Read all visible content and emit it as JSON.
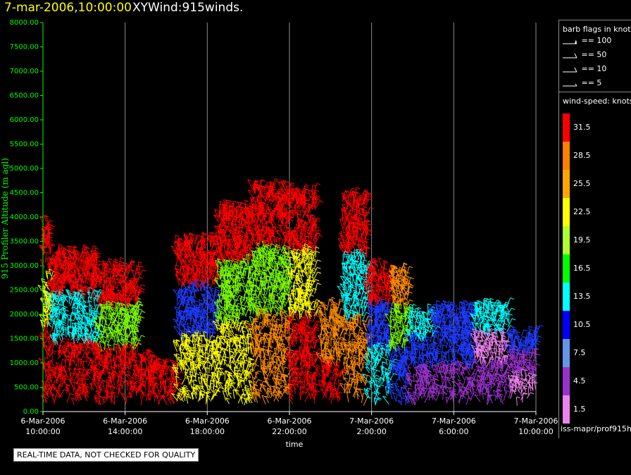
{
  "header": {
    "date": "7-mar-2006,10:00:00",
    "title": "XYWind:915winds."
  },
  "chart_data": {
    "type": "scatter",
    "title": "XYWind:915winds.",
    "xlabel": "time",
    "ylabel": "915 Profiler Altitude (m agl)",
    "ylim": [
      0,
      8000
    ],
    "yticks": [
      "0.00",
      "500.00",
      "1000.00",
      "1500.00",
      "2000.00",
      "2500.00",
      "3000.00",
      "3500.00",
      "4000.00",
      "4500.00",
      "5000.00",
      "5500.00",
      "6000.00",
      "6500.00",
      "7000.00",
      "7500.00",
      "8000.00"
    ],
    "xticks": [
      {
        "date": "6-Mar-2006",
        "time": "10:00:00"
      },
      {
        "date": "6-Mar-2006",
        "time": "14:00:00"
      },
      {
        "date": "6-Mar-2006",
        "time": "18:00:00"
      },
      {
        "date": "6-Mar-2006",
        "time": "22:00:00"
      },
      {
        "date": "7-Mar-2006",
        "time": "2:00:00"
      },
      {
        "date": "7-Mar-2006",
        "time": "6:00:00"
      },
      {
        "date": "7-Mar-2006",
        "time": "10:00:00"
      }
    ],
    "xlim_hours": [
      0,
      24
    ],
    "grid": "vertical",
    "note": "Wind barbs colored by speed; approximate column structure: [start hour, end hour, top altitude m, colour zones]",
    "columns": [
      {
        "t0": 0.0,
        "t1": 0.4,
        "top": 3900,
        "low": "red",
        "mid": "yellow",
        "hi": "red"
      },
      {
        "t0": 0.4,
        "t1": 2.7,
        "top": 3250,
        "low": "red",
        "mid": "cyan",
        "hi": "red"
      },
      {
        "t0": 2.7,
        "t1": 4.7,
        "top": 2950,
        "low": "red",
        "mid": "green",
        "hi": "red"
      },
      {
        "t0": 4.7,
        "t1": 5.3,
        "top": 1100,
        "low": "red",
        "mid": "red",
        "hi": "red"
      },
      {
        "t0": 5.3,
        "t1": 6.5,
        "top": 900,
        "low": "red",
        "mid": "red",
        "hi": "red"
      },
      {
        "t0": 6.5,
        "t1": 8.5,
        "top": 3500,
        "low": "yellow",
        "mid": "blue",
        "hi": "red"
      },
      {
        "t0": 8.5,
        "t1": 10.2,
        "top": 4200,
        "low": "yellow",
        "mid": "green",
        "hi": "red"
      },
      {
        "t0": 10.2,
        "t1": 12.0,
        "top": 4600,
        "low": "orange",
        "mid": "green",
        "hi": "red"
      },
      {
        "t0": 12.0,
        "t1": 13.3,
        "top": 4500,
        "low": "red",
        "mid": "yellow",
        "hi": "red"
      },
      {
        "t0": 13.5,
        "t1": 14.5,
        "top": 2200,
        "low": "red",
        "mid": "orange",
        "hi": "orange"
      },
      {
        "t0": 14.6,
        "t1": 15.8,
        "top": 4400,
        "low": "orange",
        "mid": "cyan",
        "hi": "red"
      },
      {
        "t0": 15.8,
        "t1": 16.9,
        "top": 3000,
        "low": "cyan",
        "mid": "blue",
        "hi": "red"
      },
      {
        "t0": 16.9,
        "t1": 17.8,
        "top": 2900,
        "low": "blue",
        "mid": "green",
        "hi": "orange"
      },
      {
        "t0": 17.8,
        "t1": 19.0,
        "top": 2000,
        "low": "violet",
        "mid": "blue",
        "hi": "cyan"
      },
      {
        "t0": 19.0,
        "t1": 21.0,
        "top": 2100,
        "low": "violet",
        "mid": "blue",
        "hi": "blue"
      },
      {
        "t0": 21.0,
        "t1": 22.7,
        "top": 2150,
        "low": "violet",
        "mid": "pink",
        "hi": "cyan"
      },
      {
        "t0": 22.7,
        "t1": 24.0,
        "top": 1600,
        "low": "pink",
        "mid": "violet",
        "hi": "blue"
      }
    ]
  },
  "legend": {
    "barb_title": "barb flags in knots",
    "barbs": [
      {
        "label": "== 100",
        "kind": "flag"
      },
      {
        "label": "== 50",
        "kind": "pennant"
      },
      {
        "label": "== 10",
        "kind": "full"
      },
      {
        "label": "== 5",
        "kind": "half"
      }
    ],
    "speed_title": "wind-speed: knots",
    "speed_scale": [
      {
        "label": "31.5",
        "color": "#ff0000"
      },
      {
        "label": "28.5",
        "color": "#ff7f00"
      },
      {
        "label": "25.5",
        "color": "#ffa500"
      },
      {
        "label": "22.5",
        "color": "#ffff00"
      },
      {
        "label": "19.5",
        "color": "#adff2f"
      },
      {
        "label": "16.5",
        "color": "#00ff00"
      },
      {
        "label": "13.5",
        "color": "#00ffff"
      },
      {
        "label": "10.5",
        "color": "#0000ff"
      },
      {
        "label": "7.5",
        "color": "#6495ed"
      },
      {
        "label": "4.5",
        "color": "#9932cc"
      },
      {
        "label": "1.5",
        "color": "#ee82ee"
      }
    ],
    "source": "iss-mapr/prof915h"
  },
  "warning": "REAL-TIME DATA, NOT CHECKED FOR QUALITY",
  "colors": {
    "axis": "#00ff00",
    "grid": "#8c8c8c",
    "red": "#ff0000",
    "orange": "#ff8c00",
    "yellow": "#ffff00",
    "green": "#7cfc00",
    "cyan": "#00ffff",
    "blue": "#1e3cff",
    "violet": "#9932cc",
    "pink": "#ee82ee"
  }
}
